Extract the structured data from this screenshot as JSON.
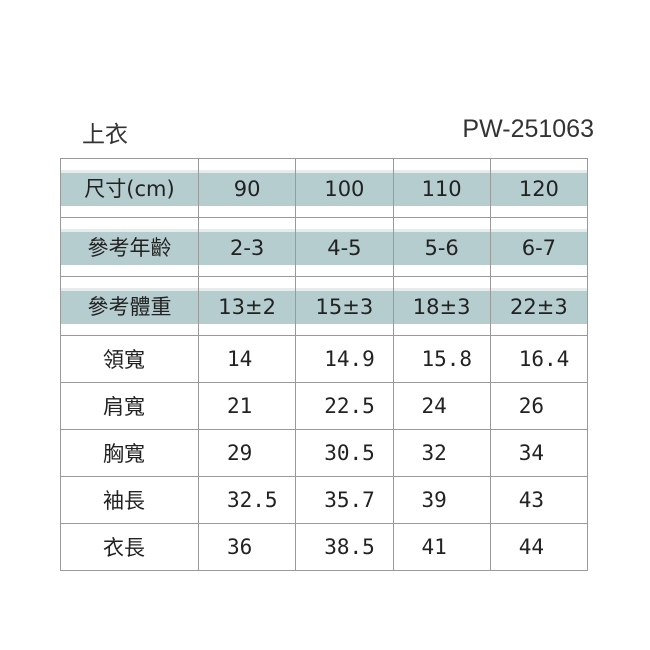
{
  "title_left": "上衣",
  "title_right": "PW-251063",
  "header_rows": [
    {
      "label": "尺寸(cm)",
      "values": [
        "90",
        "100",
        "110",
        "120"
      ]
    },
    {
      "label": "參考年齡",
      "values": [
        "2-3",
        "4-5",
        "5-6",
        "6-7"
      ]
    },
    {
      "label": "參考體重",
      "values": [
        "13±2",
        "15±3",
        "18±3",
        "22±3"
      ]
    }
  ],
  "rows": [
    {
      "label": "領寬",
      "values": [
        "14",
        "14.9",
        "15.8",
        "16.4"
      ]
    },
    {
      "label": "肩寬",
      "values": [
        "21",
        "22.5",
        "24",
        "26"
      ]
    },
    {
      "label": "胸寬",
      "values": [
        "29",
        "30.5",
        "32",
        "34"
      ]
    },
    {
      "label": "袖長",
      "values": [
        "32.5",
        "35.7",
        "39",
        "43"
      ]
    },
    {
      "label": "衣長",
      "values": [
        "36",
        "38.5",
        "41",
        "44"
      ]
    }
  ],
  "colors": {
    "header_band": "#b6cdcf"
  }
}
